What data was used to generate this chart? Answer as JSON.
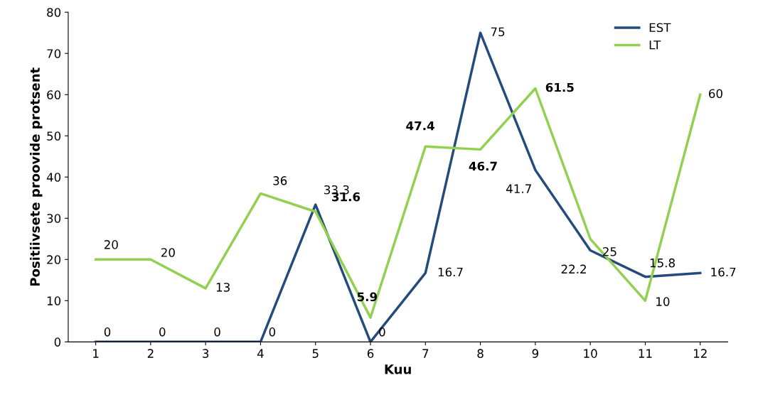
{
  "chart_data": {
    "type": "line",
    "xlabel": "Kuu",
    "ylabel": "Positiivsete proovide protsent",
    "categories": [
      "1",
      "2",
      "3",
      "4",
      "5",
      "6",
      "7",
      "8",
      "9",
      "10",
      "11",
      "12"
    ],
    "series": [
      {
        "name": "EST",
        "color": "#254a7c",
        "values": [
          0,
          0,
          0,
          0,
          33.3,
          0,
          16.7,
          75,
          41.7,
          22.2,
          15.8,
          16.7
        ]
      },
      {
        "name": "LT",
        "color": "#92d050",
        "values": [
          20,
          20,
          13,
          36,
          31.6,
          5.9,
          47.4,
          46.7,
          61.5,
          25,
          10,
          60
        ]
      }
    ],
    "ylim": [
      0,
      80
    ],
    "yticks": [
      0,
      10,
      20,
      30,
      40,
      50,
      60,
      70,
      80
    ],
    "data_labels": true,
    "legend": "top right",
    "grid": false,
    "marker": "none",
    "line_style": "solid"
  }
}
